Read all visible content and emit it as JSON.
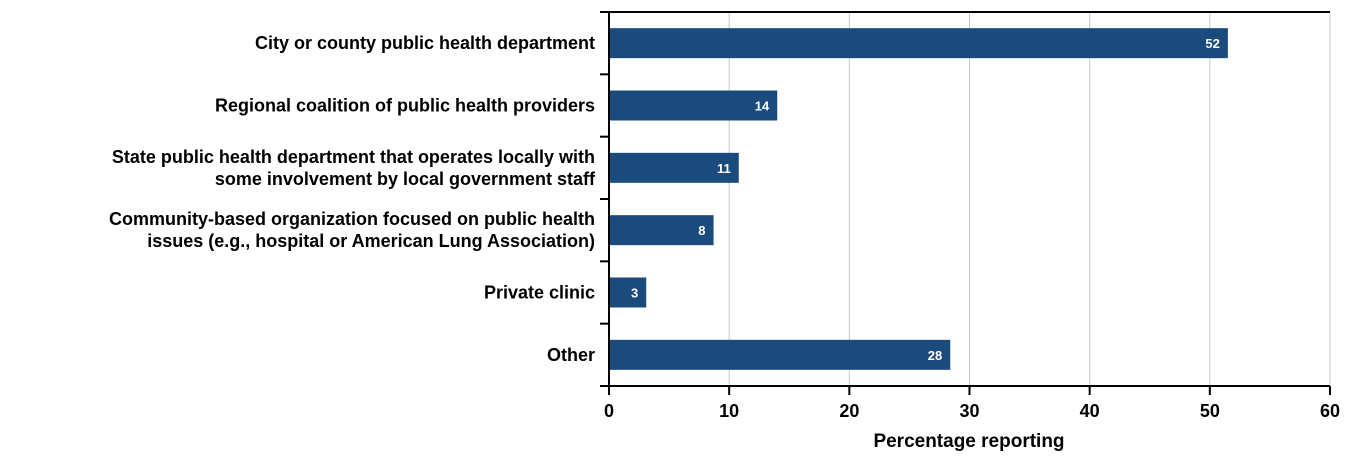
{
  "chart_data": {
    "type": "bar",
    "orientation": "horizontal",
    "categories": [
      [
        "City or county public health department"
      ],
      [
        "Regional coalition of public health providers"
      ],
      [
        "State public health department that operates locally with",
        "some involvement by local government staff"
      ],
      [
        "Community-based organization focused on public health",
        "issues (e.g., hospital or American Lung Association)"
      ],
      [
        "Private clinic"
      ],
      [
        "Other"
      ]
    ],
    "values": [
      52,
      14,
      11,
      8,
      3,
      28
    ],
    "bar_lengths": [
      51.5,
      14,
      10.8,
      8.7,
      3.1,
      28.4
    ],
    "xlabel": "Percentage reporting",
    "ylabel": "",
    "xlim": [
      0,
      60
    ],
    "xticks": [
      0,
      10,
      20,
      30,
      40,
      50,
      60
    ],
    "grid": "vertical",
    "bar_color": "#1b4a7d",
    "grid_color": "#c8c8c8"
  }
}
